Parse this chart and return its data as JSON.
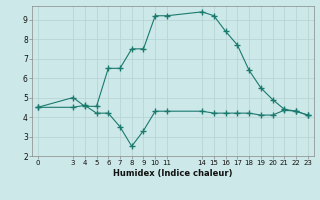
{
  "line1_x": [
    0,
    3,
    4,
    5,
    6,
    7,
    8,
    9,
    10,
    11,
    14,
    15,
    16,
    17,
    18,
    19,
    20,
    21,
    22,
    23
  ],
  "line1_y": [
    4.5,
    5.0,
    4.55,
    4.55,
    6.5,
    6.5,
    7.5,
    7.5,
    9.2,
    9.2,
    9.4,
    9.2,
    8.4,
    7.7,
    6.4,
    5.5,
    4.9,
    4.4,
    4.3,
    4.1
  ],
  "line2_x": [
    0,
    3,
    4,
    5,
    6,
    7,
    8,
    9,
    10,
    11,
    14,
    15,
    16,
    17,
    18,
    19,
    20,
    21,
    22,
    23
  ],
  "line2_y": [
    4.5,
    4.5,
    4.6,
    4.2,
    4.2,
    3.5,
    2.5,
    3.3,
    4.3,
    4.3,
    4.3,
    4.2,
    4.2,
    4.2,
    4.2,
    4.1,
    4.1,
    4.35,
    4.3,
    4.1
  ],
  "line_color": "#1a7a6e",
  "bg_color": "#cde8e8",
  "grid_color": "#b8d4d4",
  "xlabel": "Humidex (Indice chaleur)",
  "xticks": [
    0,
    3,
    4,
    5,
    6,
    7,
    8,
    9,
    10,
    11,
    14,
    15,
    16,
    17,
    18,
    19,
    20,
    21,
    22,
    23
  ],
  "xlim": [
    -0.5,
    23.5
  ],
  "ylim": [
    2,
    9.7
  ],
  "yticks": [
    2,
    3,
    4,
    5,
    6,
    7,
    8,
    9
  ]
}
